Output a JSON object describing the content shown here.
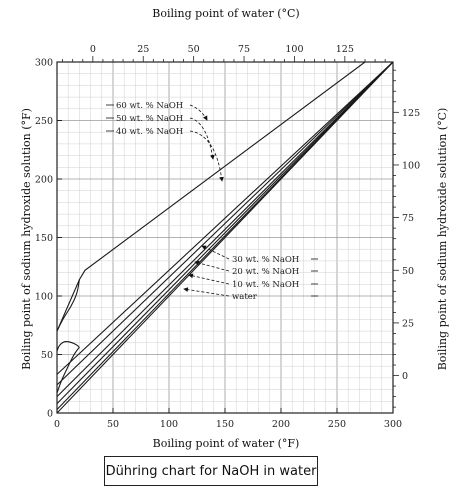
{
  "caption": "Dühring chart for NaOH in water",
  "chart_data": {
    "type": "line",
    "xlabel": "Boiling point of water (°F)",
    "ylabel_left": "Boiling point of sodium hydroxide solution (°F)",
    "xlabel_top": "Boiling point of water (°C)",
    "ylabel_right": "Boiling point of sodium hydroxide solution (°C)",
    "xlim": [
      0,
      300
    ],
    "ylim": [
      0,
      300
    ],
    "x_ticks_bottom": [
      "0",
      "50",
      "100",
      "150",
      "200",
      "250",
      "300"
    ],
    "y_ticks_left": [
      "0",
      "50",
      "100",
      "150",
      "200",
      "250",
      "300"
    ],
    "x_ticks_top": [
      "0",
      "25",
      "50",
      "75",
      "100",
      "125"
    ],
    "y_ticks_right": [
      "0",
      "25",
      "50",
      "75",
      "100",
      "125"
    ],
    "grid": true,
    "series": [
      {
        "name": "60 wt. % NaOH",
        "x": [
          0,
          20,
          25,
          275
        ],
        "y": [
          70,
          114,
          122,
          300
        ]
      },
      {
        "name": "50 wt. % NaOH",
        "x": [
          0,
          300
        ],
        "y": [
          33,
          300
        ]
      },
      {
        "name": "40 wt. % NaOH",
        "x": [
          0,
          300
        ],
        "y": [
          24,
          300
        ]
      },
      {
        "name": "30 wt. % NaOH",
        "x": [
          0,
          300
        ],
        "y": [
          14,
          300
        ]
      },
      {
        "name": "20 wt. % NaOH",
        "x": [
          0,
          300
        ],
        "y": [
          8,
          300
        ]
      },
      {
        "name": "10 wt. % NaOH",
        "x": [
          0,
          300
        ],
        "y": [
          3,
          300
        ]
      },
      {
        "name": "water",
        "x": [
          0,
          300
        ],
        "y": [
          0,
          300
        ]
      }
    ],
    "branches": [
      {
        "x": [
          0,
          5,
          12,
          18,
          20
        ],
        "y": [
          70,
          80,
          90,
          102,
          114
        ]
      },
      {
        "x": [
          0,
          2,
          6,
          10,
          14,
          18,
          20
        ],
        "y": [
          53,
          58,
          61,
          61,
          60,
          58,
          56
        ]
      },
      {
        "x": [
          0,
          4,
          9,
          14,
          18,
          20
        ],
        "y": [
          17,
          28,
          38,
          48,
          54,
          56
        ]
      }
    ]
  }
}
